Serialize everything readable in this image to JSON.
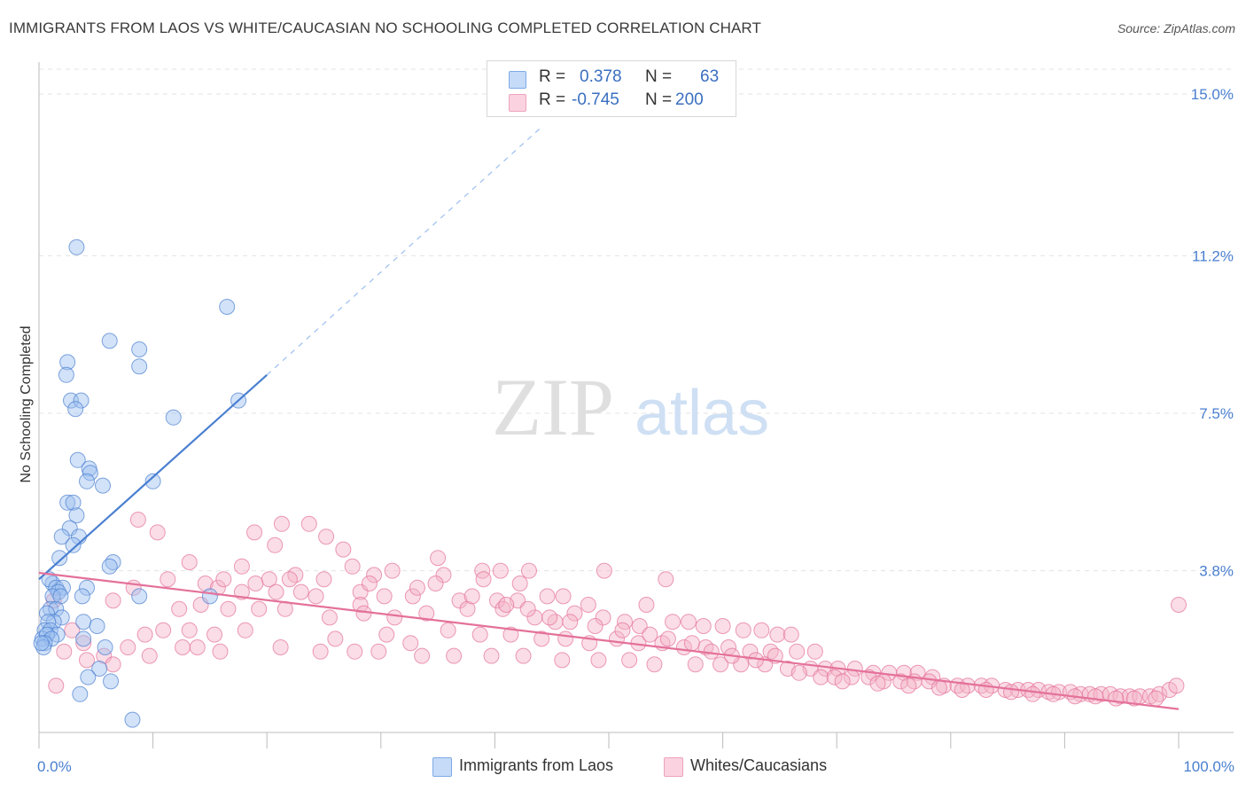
{
  "title": "IMMIGRANTS FROM LAOS VS WHITE/CAUCASIAN NO SCHOOLING COMPLETED CORRELATION CHART",
  "source": "Source: ZipAtlas.com",
  "watermark": {
    "zip": "ZIP",
    "atlas": "atlas"
  },
  "legend": {
    "rows": [
      {
        "r_label": "R =",
        "r_value": "0.378",
        "n_label": "N =",
        "n_value": "63",
        "color": "#9bbff0"
      },
      {
        "r_label": "R =",
        "r_value": "-0.745",
        "n_label": "N =",
        "n_value": "200",
        "color": "#f5b3c8"
      }
    ]
  },
  "bottom_legend": {
    "items": [
      {
        "label": "Immigrants from Laos",
        "color": "#9bbff0"
      },
      {
        "label": "Whites/Caucasians",
        "color": "#f5b3c8"
      }
    ]
  },
  "chart_data": {
    "type": "scatter",
    "title": "IMMIGRANTS FROM LAOS VS WHITE/CAUCASIAN NO SCHOOLING COMPLETED CORRELATION CHART",
    "xlabel": "",
    "ylabel": "No Schooling Completed",
    "xlim": [
      0,
      100
    ],
    "ylim": [
      0,
      15.75
    ],
    "x_tick_labels": [
      "0.0%",
      "100.0%"
    ],
    "y_ticks": [
      3.8,
      7.5,
      11.2,
      15.0
    ],
    "y_tick_labels": [
      "3.8%",
      "7.5%",
      "11.2%",
      "15.0%"
    ],
    "grid": "horizontal dashed",
    "legend_position": "top-center",
    "series": [
      {
        "name": "Immigrants from Laos",
        "color": "#4a7fd0",
        "fill": "#9bbff0",
        "trend": {
          "x0": 0,
          "y0": 3.6,
          "x1": 20,
          "y1": 8.4,
          "extend_dashed_to_x": 44,
          "extend_dashed_to_y": 14.2
        },
        "points": [
          [
            3.3,
            11.4
          ],
          [
            16.5,
            10.0
          ],
          [
            6.2,
            9.2
          ],
          [
            8.8,
            9.0
          ],
          [
            2.5,
            8.7
          ],
          [
            8.8,
            8.6
          ],
          [
            2.4,
            8.4
          ],
          [
            2.8,
            7.8
          ],
          [
            3.7,
            7.8
          ],
          [
            3.2,
            7.6
          ],
          [
            17.5,
            7.8
          ],
          [
            11.8,
            7.4
          ],
          [
            3.4,
            6.4
          ],
          [
            4.4,
            6.2
          ],
          [
            4.5,
            6.1
          ],
          [
            4.2,
            5.9
          ],
          [
            5.6,
            5.8
          ],
          [
            10.0,
            5.9
          ],
          [
            2.5,
            5.4
          ],
          [
            3.0,
            5.4
          ],
          [
            3.3,
            5.1
          ],
          [
            2.7,
            4.8
          ],
          [
            2.0,
            4.6
          ],
          [
            3.5,
            4.6
          ],
          [
            3.0,
            4.4
          ],
          [
            1.8,
            4.1
          ],
          [
            6.5,
            4.0
          ],
          [
            6.2,
            3.9
          ],
          [
            1.2,
            3.5
          ],
          [
            0.9,
            3.6
          ],
          [
            1.5,
            3.4
          ],
          [
            2.1,
            3.4
          ],
          [
            4.2,
            3.4
          ],
          [
            1.7,
            3.3
          ],
          [
            1.2,
            3.2
          ],
          [
            1.9,
            3.2
          ],
          [
            3.8,
            3.2
          ],
          [
            8.8,
            3.2
          ],
          [
            15.0,
            3.2
          ],
          [
            1.0,
            2.9
          ],
          [
            1.5,
            2.9
          ],
          [
            2.0,
            2.7
          ],
          [
            0.7,
            2.8
          ],
          [
            1.3,
            2.6
          ],
          [
            0.8,
            2.6
          ],
          [
            3.9,
            2.6
          ],
          [
            5.1,
            2.5
          ],
          [
            0.5,
            2.4
          ],
          [
            1.0,
            2.4
          ],
          [
            1.6,
            2.3
          ],
          [
            0.3,
            2.2
          ],
          [
            0.7,
            2.3
          ],
          [
            1.1,
            2.2
          ],
          [
            3.9,
            2.2
          ],
          [
            0.5,
            2.1
          ],
          [
            5.8,
            2.0
          ],
          [
            0.4,
            2.0
          ],
          [
            5.3,
            1.5
          ],
          [
            4.3,
            1.3
          ],
          [
            6.3,
            1.2
          ],
          [
            3.6,
            0.9
          ],
          [
            8.2,
            0.3
          ],
          [
            0.2,
            2.1
          ]
        ]
      },
      {
        "name": "Whites/Caucasians",
        "color": "#e4719a",
        "fill": "#f5b3c8",
        "trend": {
          "x0": 0,
          "y0": 3.75,
          "x1": 100,
          "y1": 0.55
        },
        "points": [
          [
            8.7,
            5.0
          ],
          [
            21.3,
            4.9
          ],
          [
            23.7,
            4.9
          ],
          [
            10.4,
            4.7
          ],
          [
            18.9,
            4.7
          ],
          [
            25.2,
            4.6
          ],
          [
            20.7,
            4.4
          ],
          [
            26.7,
            4.3
          ],
          [
            13.2,
            4.0
          ],
          [
            27.5,
            3.9
          ],
          [
            31.0,
            3.8
          ],
          [
            35.0,
            4.1
          ],
          [
            17.8,
            3.9
          ],
          [
            29.4,
            3.7
          ],
          [
            11.3,
            3.6
          ],
          [
            20.2,
            3.6
          ],
          [
            22.5,
            3.7
          ],
          [
            35.5,
            3.7
          ],
          [
            38.9,
            3.8
          ],
          [
            40.5,
            3.8
          ],
          [
            43.0,
            3.8
          ],
          [
            34.8,
            3.5
          ],
          [
            39.0,
            3.6
          ],
          [
            42.2,
            3.5
          ],
          [
            49.6,
            3.8
          ],
          [
            55.0,
            3.6
          ],
          [
            14.6,
            3.5
          ],
          [
            8.3,
            3.4
          ],
          [
            15.7,
            3.4
          ],
          [
            17.8,
            3.3
          ],
          [
            20.8,
            3.3
          ],
          [
            23.0,
            3.3
          ],
          [
            24.3,
            3.2
          ],
          [
            28.2,
            3.3
          ],
          [
            30.3,
            3.2
          ],
          [
            32.8,
            3.2
          ],
          [
            36.9,
            3.1
          ],
          [
            40.2,
            3.1
          ],
          [
            42.0,
            3.1
          ],
          [
            44.6,
            3.2
          ],
          [
            46.0,
            3.2
          ],
          [
            48.2,
            3.0
          ],
          [
            53.3,
            3.0
          ],
          [
            6.5,
            3.1
          ],
          [
            12.3,
            2.9
          ],
          [
            14.2,
            3.0
          ],
          [
            16.6,
            2.9
          ],
          [
            19.3,
            2.9
          ],
          [
            21.6,
            2.9
          ],
          [
            25.5,
            2.7
          ],
          [
            28.2,
            3.0
          ],
          [
            28.5,
            2.8
          ],
          [
            31.2,
            2.7
          ],
          [
            34.0,
            2.8
          ],
          [
            37.6,
            2.9
          ],
          [
            40.7,
            2.9
          ],
          [
            43.5,
            2.7
          ],
          [
            45.3,
            2.6
          ],
          [
            47.0,
            2.8
          ],
          [
            49.5,
            2.7
          ],
          [
            51.4,
            2.6
          ],
          [
            52.7,
            2.5
          ],
          [
            55.6,
            2.6
          ],
          [
            57.0,
            2.6
          ],
          [
            58.3,
            2.5
          ],
          [
            60.0,
            2.5
          ],
          [
            61.8,
            2.4
          ],
          [
            63.4,
            2.4
          ],
          [
            64.8,
            2.3
          ],
          [
            66.0,
            2.3
          ],
          [
            10.9,
            2.4
          ],
          [
            13.2,
            2.4
          ],
          [
            15.4,
            2.3
          ],
          [
            18.1,
            2.4
          ],
          [
            26.0,
            2.2
          ],
          [
            30.5,
            2.3
          ],
          [
            32.6,
            2.1
          ],
          [
            35.9,
            2.4
          ],
          [
            38.7,
            2.3
          ],
          [
            41.4,
            2.3
          ],
          [
            44.1,
            2.2
          ],
          [
            46.2,
            2.2
          ],
          [
            48.3,
            2.1
          ],
          [
            50.7,
            2.2
          ],
          [
            52.6,
            2.1
          ],
          [
            54.7,
            2.1
          ],
          [
            56.6,
            2.0
          ],
          [
            58.5,
            2.0
          ],
          [
            60.5,
            2.0
          ],
          [
            62.4,
            1.9
          ],
          [
            64.2,
            1.9
          ],
          [
            66.5,
            1.9
          ],
          [
            68.1,
            1.9
          ],
          [
            3.9,
            2.1
          ],
          [
            7.8,
            2.0
          ],
          [
            12.6,
            2.0
          ],
          [
            15.9,
            1.9
          ],
          [
            21.2,
            2.0
          ],
          [
            24.7,
            1.9
          ],
          [
            27.7,
            1.9
          ],
          [
            29.8,
            1.9
          ],
          [
            33.6,
            1.8
          ],
          [
            36.4,
            1.8
          ],
          [
            39.7,
            1.8
          ],
          [
            42.5,
            1.8
          ],
          [
            45.9,
            1.7
          ],
          [
            49.1,
            1.7
          ],
          [
            51.8,
            1.7
          ],
          [
            54.0,
            1.6
          ],
          [
            57.6,
            1.6
          ],
          [
            59.8,
            1.6
          ],
          [
            61.6,
            1.6
          ],
          [
            63.7,
            1.6
          ],
          [
            65.7,
            1.5
          ],
          [
            67.7,
            1.5
          ],
          [
            69.0,
            1.5
          ],
          [
            70.1,
            1.5
          ],
          [
            71.6,
            1.5
          ],
          [
            73.2,
            1.4
          ],
          [
            74.6,
            1.4
          ],
          [
            75.9,
            1.4
          ],
          [
            77.1,
            1.4
          ],
          [
            78.4,
            1.3
          ],
          [
            2.2,
            1.9
          ],
          [
            5.7,
            1.8
          ],
          [
            9.7,
            1.8
          ],
          [
            6.5,
            1.6
          ],
          [
            4.2,
            1.7
          ],
          [
            66.7,
            1.4
          ],
          [
            68.6,
            1.3
          ],
          [
            69.8,
            1.3
          ],
          [
            71.3,
            1.3
          ],
          [
            72.8,
            1.3
          ],
          [
            74.1,
            1.2
          ],
          [
            75.6,
            1.2
          ],
          [
            76.8,
            1.2
          ],
          [
            78.1,
            1.2
          ],
          [
            79.4,
            1.1
          ],
          [
            80.6,
            1.1
          ],
          [
            81.5,
            1.1
          ],
          [
            82.7,
            1.1
          ],
          [
            83.6,
            1.1
          ],
          [
            84.8,
            1.0
          ],
          [
            85.9,
            1.0
          ],
          [
            86.8,
            1.0
          ],
          [
            87.7,
            1.0
          ],
          [
            88.6,
            0.95
          ],
          [
            89.5,
            0.95
          ],
          [
            90.5,
            0.95
          ],
          [
            91.4,
            0.9
          ],
          [
            92.2,
            0.9
          ],
          [
            93.2,
            0.9
          ],
          [
            94.0,
            0.9
          ],
          [
            94.9,
            0.85
          ],
          [
            95.7,
            0.85
          ],
          [
            96.6,
            0.85
          ],
          [
            97.5,
            0.85
          ],
          [
            98.3,
            0.9
          ],
          [
            99.2,
            1.0
          ],
          [
            99.8,
            1.1
          ],
          [
            100.0,
            3.0
          ],
          [
            70.5,
            1.2
          ],
          [
            73.6,
            1.15
          ],
          [
            76.3,
            1.1
          ],
          [
            79.0,
            1.05
          ],
          [
            81.0,
            1.0
          ],
          [
            83.1,
            1.0
          ],
          [
            85.3,
            0.95
          ],
          [
            87.2,
            0.9
          ],
          [
            89.0,
            0.9
          ],
          [
            90.9,
            0.85
          ],
          [
            92.7,
            0.85
          ],
          [
            94.5,
            0.8
          ],
          [
            96.1,
            0.8
          ],
          [
            98.0,
            0.8
          ],
          [
            64.6,
            1.8
          ],
          [
            62.9,
            1.7
          ],
          [
            60.8,
            1.8
          ],
          [
            59.0,
            1.9
          ],
          [
            57.3,
            2.1
          ],
          [
            55.2,
            2.2
          ],
          [
            53.6,
            2.3
          ],
          [
            51.2,
            2.4
          ],
          [
            48.8,
            2.5
          ],
          [
            46.6,
            2.6
          ],
          [
            44.8,
            2.7
          ],
          [
            42.9,
            2.9
          ],
          [
            41.0,
            3.0
          ],
          [
            38.0,
            3.2
          ],
          [
            33.2,
            3.4
          ],
          [
            29.0,
            3.5
          ],
          [
            25.0,
            3.6
          ],
          [
            22.0,
            3.6
          ],
          [
            19.0,
            3.5
          ],
          [
            16.2,
            3.6
          ],
          [
            1.3,
            3.1
          ],
          [
            1.5,
            1.1
          ],
          [
            2.9,
            2.4
          ],
          [
            9.3,
            2.3
          ],
          [
            13.9,
            2.0
          ]
        ]
      }
    ]
  }
}
